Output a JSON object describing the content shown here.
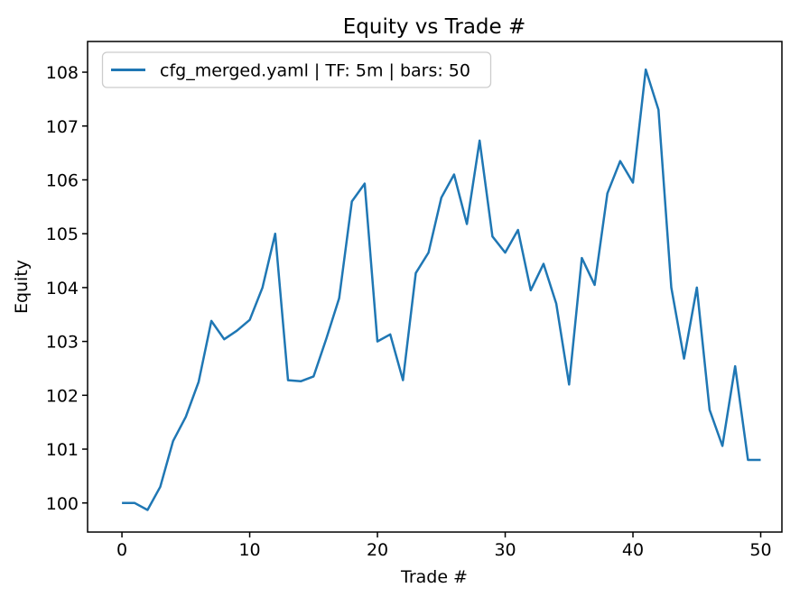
{
  "figure": {
    "background": "#ffffff",
    "text_color": "#000000",
    "spine_color": "#000000"
  },
  "chart_data": {
    "type": "line",
    "title": "Equity vs Trade #",
    "xlabel": "Trade #",
    "ylabel": "Equity",
    "grid": false,
    "legend": {
      "position": "upper left",
      "entries": [
        "cfg_merged.yaml | TF: 5m | bars: 50"
      ]
    },
    "x_ticks": [
      0,
      10,
      20,
      30,
      40,
      50
    ],
    "y_ticks": [
      100,
      101,
      102,
      103,
      104,
      105,
      106,
      107,
      108
    ],
    "xlim": [
      -2.69,
      51.66
    ],
    "ylim": [
      99.46,
      108.57
    ],
    "x": [
      0,
      1,
      2,
      3,
      4,
      5,
      6,
      7,
      8,
      9,
      10,
      11,
      12,
      13,
      14,
      15,
      16,
      17,
      18,
      19,
      20,
      21,
      22,
      23,
      24,
      25,
      26,
      27,
      28,
      29,
      30,
      31,
      32,
      33,
      34,
      35,
      36,
      37,
      38,
      39,
      40,
      41,
      42,
      43,
      44,
      45,
      46,
      47,
      48,
      49,
      50
    ],
    "series": [
      {
        "name": "cfg_merged.yaml | TF: 5m | bars: 50",
        "color": "#1f77b4",
        "values": [
          100.0,
          100.0,
          99.87,
          100.3,
          101.15,
          101.6,
          102.25,
          103.38,
          103.04,
          103.2,
          103.4,
          104.0,
          105.0,
          102.28,
          102.26,
          102.35,
          103.05,
          103.8,
          105.6,
          105.93,
          103.0,
          103.13,
          102.28,
          104.27,
          104.65,
          105.67,
          106.1,
          105.18,
          106.73,
          104.95,
          104.65,
          105.07,
          103.95,
          104.44,
          103.7,
          102.2,
          104.55,
          104.05,
          105.75,
          106.35,
          105.95,
          108.05,
          107.3,
          104.0,
          102.68,
          104.0,
          101.73,
          101.06,
          102.54,
          100.8,
          100.8
        ]
      }
    ]
  }
}
